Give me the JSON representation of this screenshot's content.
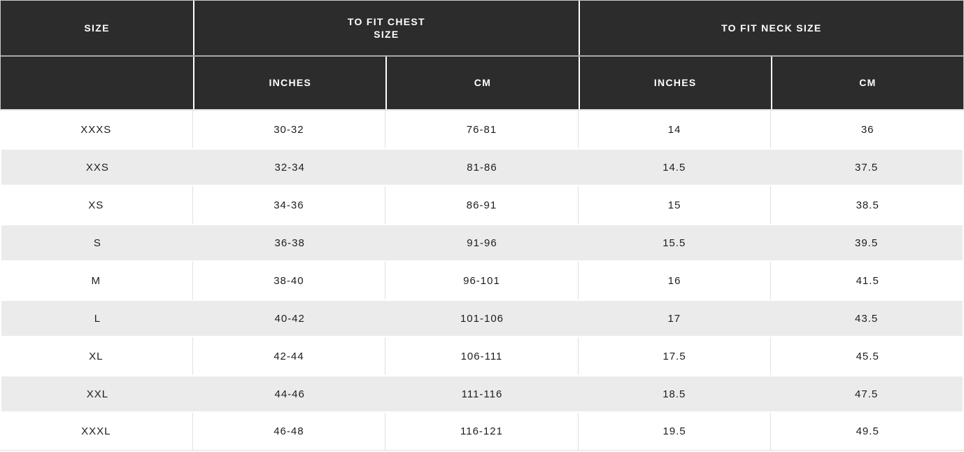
{
  "chart_data": {
    "type": "table",
    "header_groups": [
      {
        "label": "SIZE",
        "colspan": 1
      },
      {
        "label": "TO FIT CHEST\nSIZE",
        "colspan": 2
      },
      {
        "label": "TO FIT NECK SIZE",
        "colspan": 2
      }
    ],
    "sub_headers": [
      "",
      "INCHES",
      "CM",
      "INCHES",
      "CM"
    ],
    "rows": [
      [
        "XXXS",
        "30-32",
        "76-81",
        "14",
        "36"
      ],
      [
        "XXS",
        "32-34",
        "81-86",
        "14.5",
        "37.5"
      ],
      [
        "XS",
        "34-36",
        "86-91",
        "15",
        "38.5"
      ],
      [
        "S",
        "36-38",
        "91-96",
        "15.5",
        "39.5"
      ],
      [
        "M",
        "38-40",
        "96-101",
        "16",
        "41.5"
      ],
      [
        "L",
        "40-42",
        "101-106",
        "17",
        "43.5"
      ],
      [
        "XL",
        "42-44",
        "106-111",
        "17.5",
        "45.5"
      ],
      [
        "XXL",
        "44-46",
        "111-116",
        "18.5",
        "47.5"
      ],
      [
        "XXXL",
        "46-48",
        "116-121",
        "19.5",
        "49.5"
      ]
    ]
  },
  "colors": {
    "header_bg": "#2c2c2c",
    "header_text": "#ffffff",
    "header_row_divider": "#a8a8a8",
    "header_col_divider": "#ffffff",
    "row_bg": "#ffffff",
    "row_alt_bg": "#ebebeb",
    "body_text": "#1d1d1d",
    "col_divider": "#e0e0e0"
  }
}
